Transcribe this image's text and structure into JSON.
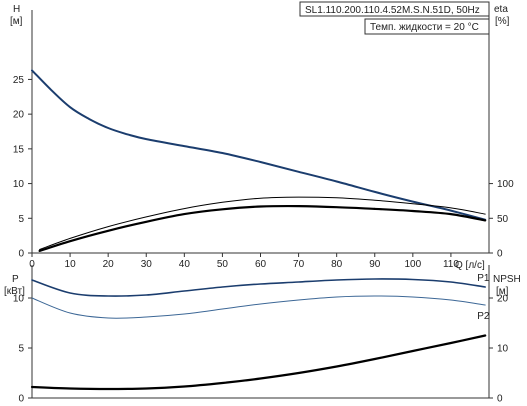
{
  "colors": {
    "dark_blue": "#1b3d6e",
    "mid_blue": "#3c6796",
    "black": "#000000",
    "axis": "#333333"
  },
  "header": {
    "model": "SL1.110.200.110.4.52M.S.N.51D, 50Hz",
    "note": "Темп. жидкости = 20 °C"
  },
  "chart_data": [
    {
      "type": "line",
      "id": "top",
      "xlabel": "Q [л/с]",
      "ylabel_left": "H",
      "ylabel_left_unit": "[м]",
      "ylabel_right": "eta",
      "ylabel_right_unit": "[%]",
      "xlim": [
        0,
        120
      ],
      "xticks": [
        0,
        10,
        20,
        30,
        40,
        50,
        60,
        70,
        80,
        90,
        100,
        110
      ],
      "ylim_left": [
        0,
        35
      ],
      "yticks_left": [
        0,
        5,
        10,
        15,
        20,
        25
      ],
      "ylim_right": [
        0,
        350
      ],
      "yticks_right": [
        0,
        50,
        100
      ],
      "series": [
        {
          "axis": "left",
          "color": "#1b3d6e",
          "width": 2,
          "x": [
            0,
            5,
            10,
            15,
            20,
            25,
            30,
            40,
            50,
            60,
            70,
            80,
            90,
            100,
            110,
            119
          ],
          "y": [
            26.3,
            23.5,
            21.0,
            19.3,
            18.0,
            17.1,
            16.4,
            15.4,
            14.4,
            13.1,
            11.7,
            10.3,
            8.8,
            7.4,
            6.1,
            4.8
          ]
        },
        {
          "axis": "right",
          "color": "#000000",
          "width": 1,
          "x": [
            2,
            10,
            20,
            30,
            40,
            50,
            60,
            70,
            80,
            90,
            100,
            110,
            119
          ],
          "y": [
            5,
            21,
            38,
            52,
            64,
            73,
            79,
            80.5,
            79.5,
            76,
            71,
            65,
            56
          ]
        },
        {
          "axis": "right",
          "color": "#000000",
          "width": 2.2,
          "x": [
            2,
            10,
            20,
            30,
            40,
            50,
            60,
            70,
            80,
            90,
            100,
            110,
            119
          ],
          "y": [
            3,
            17,
            32,
            45,
            56,
            63,
            67,
            67.5,
            66,
            63.5,
            60.5,
            56,
            47
          ]
        }
      ]
    },
    {
      "type": "line",
      "id": "bottom",
      "ylabel_left": "P",
      "ylabel_left_unit": "[кВт]",
      "ylabel_right": "NPSH",
      "ylabel_right_unit": "[м]",
      "xlim": [
        0,
        120
      ],
      "ylim_left": [
        0,
        13.3
      ],
      "yticks_left": [
        0,
        5,
        10
      ],
      "ylim_right": [
        0,
        26.6
      ],
      "yticks_right": [
        0,
        10,
        20
      ],
      "series": [
        {
          "name": "P1",
          "axis": "left",
          "color": "#1b3d6e",
          "width": 1.6,
          "x": [
            0,
            10,
            20,
            30,
            40,
            50,
            60,
            70,
            80,
            90,
            100,
            110,
            119
          ],
          "y": [
            11.8,
            10.5,
            10.2,
            10.3,
            10.7,
            11.1,
            11.4,
            11.6,
            11.8,
            11.9,
            11.85,
            11.6,
            11.1
          ]
        },
        {
          "name": "P2",
          "axis": "left",
          "color": "#3c6796",
          "width": 1,
          "x": [
            0,
            10,
            20,
            30,
            40,
            50,
            60,
            70,
            80,
            90,
            100,
            110,
            119
          ],
          "y": [
            10.0,
            8.5,
            8.0,
            8.1,
            8.4,
            8.9,
            9.4,
            9.8,
            10.1,
            10.2,
            10.1,
            9.8,
            9.3
          ]
        },
        {
          "axis": "right",
          "color": "#000000",
          "width": 2.2,
          "x": [
            0,
            10,
            20,
            30,
            40,
            50,
            60,
            70,
            80,
            90,
            100,
            110,
            119
          ],
          "y": [
            2.2,
            1.9,
            1.8,
            1.9,
            2.3,
            3.0,
            3.9,
            5.0,
            6.3,
            7.8,
            9.4,
            11.0,
            12.5
          ]
        }
      ]
    }
  ]
}
